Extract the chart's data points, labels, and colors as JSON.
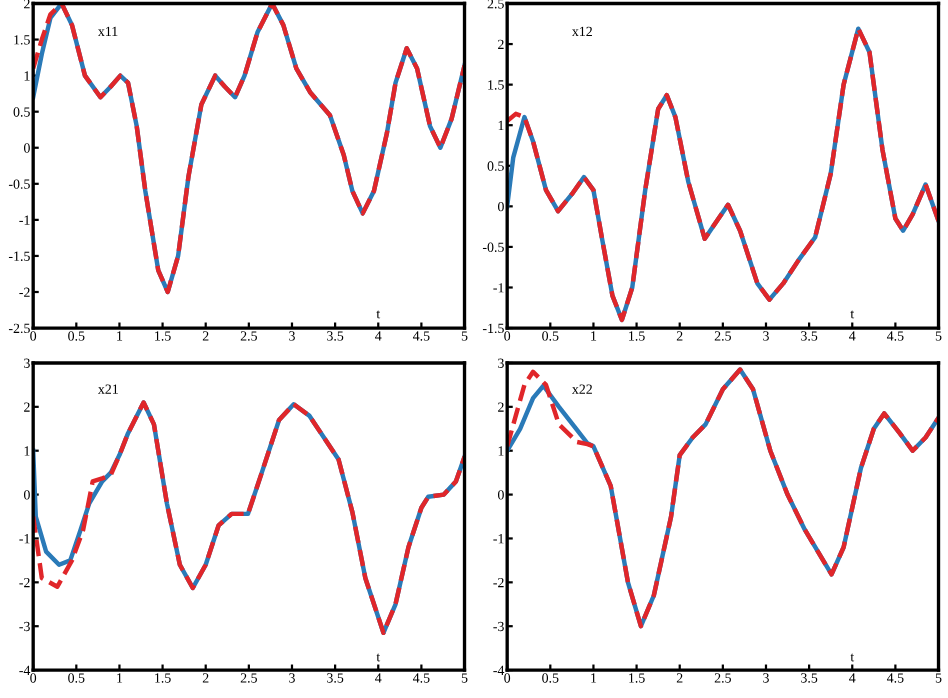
{
  "chart_data": [
    {
      "type": "line",
      "xlabel": "t",
      "annotations": [
        "x11"
      ],
      "xlim": [
        0,
        5
      ],
      "xticks": [
        0,
        0.5,
        1,
        1.5,
        2,
        2.5,
        3,
        3.5,
        4,
        4.5,
        5
      ],
      "ylim": [
        -2.5,
        2
      ],
      "yticks": [
        -2.5,
        -2,
        -1.5,
        -1,
        -0.5,
        0,
        0.5,
        1,
        1.5,
        2
      ],
      "grid": false,
      "series": [
        {
          "color": "#2a7ab8",
          "line_style": "solid",
          "x": [
            0,
            0.1,
            0.2,
            0.33,
            0.45,
            0.6,
            0.78,
            0.9,
            1.01,
            1.1,
            1.2,
            1.3,
            1.45,
            1.56,
            1.68,
            1.8,
            1.95,
            2.11,
            2.22,
            2.34,
            2.45,
            2.6,
            2.77,
            2.9,
            3.05,
            3.21,
            3.44,
            3.6,
            3.7,
            3.82,
            3.95,
            4.1,
            4.2,
            4.33,
            4.45,
            4.6,
            4.72,
            4.85,
            5
          ],
          "values": [
            0.7,
            1.3,
            1.8,
            2.0,
            1.7,
            1.0,
            0.7,
            0.85,
            1.0,
            0.9,
            0.3,
            -0.6,
            -1.7,
            -2.0,
            -1.5,
            -0.4,
            0.6,
            1.0,
            0.85,
            0.7,
            1.0,
            1.6,
            2.0,
            1.7,
            1.1,
            0.77,
            0.45,
            -0.1,
            -0.6,
            -0.91,
            -0.6,
            0.2,
            0.9,
            1.38,
            1.1,
            0.3,
            0.0,
            0.4,
            1.14
          ]
        },
        {
          "color": "#e0262a",
          "line_style": "dashed",
          "x": [
            0,
            0.1,
            0.2,
            0.33,
            0.45,
            0.6,
            0.78,
            0.9,
            1.01,
            1.1,
            1.2,
            1.3,
            1.45,
            1.56,
            1.68,
            1.8,
            1.95,
            2.11,
            2.22,
            2.34,
            2.45,
            2.6,
            2.77,
            2.9,
            3.05,
            3.21,
            3.44,
            3.6,
            3.7,
            3.82,
            3.95,
            4.1,
            4.2,
            4.33,
            4.45,
            4.6,
            4.72,
            4.85,
            5
          ],
          "values": [
            1.1,
            1.5,
            1.85,
            2.0,
            1.7,
            1.0,
            0.7,
            0.85,
            1.0,
            0.9,
            0.3,
            -0.6,
            -1.7,
            -2.0,
            -1.5,
            -0.4,
            0.6,
            1.0,
            0.85,
            0.7,
            1.0,
            1.6,
            2.0,
            1.7,
            1.1,
            0.77,
            0.45,
            -0.1,
            -0.6,
            -0.91,
            -0.6,
            0.2,
            0.9,
            1.38,
            1.1,
            0.3,
            0.0,
            0.4,
            1.14
          ]
        }
      ]
    },
    {
      "type": "line",
      "xlabel": "t",
      "annotations": [
        "x12"
      ],
      "xlim": [
        0,
        5
      ],
      "xticks": [
        0,
        0.5,
        1,
        1.5,
        2,
        2.5,
        3,
        3.5,
        4,
        4.5,
        5
      ],
      "ylim": [
        -1.5,
        2.5
      ],
      "yticks": [
        -1.5,
        -1,
        -0.5,
        0,
        0.5,
        1,
        1.5,
        2,
        2.5
      ],
      "grid": false,
      "series": [
        {
          "color": "#2a7ab8",
          "line_style": "solid",
          "x": [
            0,
            0.07,
            0.2,
            0.3,
            0.45,
            0.59,
            0.75,
            0.89,
            1.0,
            1.1,
            1.22,
            1.33,
            1.45,
            1.6,
            1.75,
            1.85,
            1.95,
            2.1,
            2.29,
            2.45,
            2.56,
            2.7,
            2.9,
            3.04,
            3.2,
            3.38,
            3.57,
            3.75,
            3.9,
            4.07,
            4.2,
            4.35,
            4.5,
            4.59,
            4.7,
            4.85,
            5
          ],
          "values": [
            0.0,
            0.6,
            1.1,
            0.8,
            0.2,
            -0.06,
            0.15,
            0.36,
            0.2,
            -0.4,
            -1.1,
            -1.4,
            -1.0,
            0.2,
            1.2,
            1.37,
            1.1,
            0.3,
            -0.4,
            -0.15,
            0.02,
            -0.3,
            -0.95,
            -1.15,
            -0.95,
            -0.66,
            -0.38,
            0.4,
            1.5,
            2.19,
            1.9,
            0.7,
            -0.15,
            -0.3,
            -0.1,
            0.27,
            -0.18
          ]
        },
        {
          "color": "#e0262a",
          "line_style": "dashed",
          "x": [
            0,
            0.1,
            0.2,
            0.3,
            0.45,
            0.59,
            0.75,
            0.89,
            1.0,
            1.1,
            1.22,
            1.33,
            1.45,
            1.6,
            1.75,
            1.85,
            1.95,
            2.1,
            2.29,
            2.45,
            2.56,
            2.7,
            2.9,
            3.04,
            3.2,
            3.38,
            3.57,
            3.75,
            3.9,
            4.07,
            4.2,
            4.35,
            4.5,
            4.59,
            4.7,
            4.85,
            5
          ],
          "values": [
            1.05,
            1.14,
            1.1,
            0.8,
            0.2,
            -0.06,
            0.15,
            0.36,
            0.2,
            -0.4,
            -1.1,
            -1.4,
            -1.0,
            0.2,
            1.2,
            1.37,
            1.1,
            0.3,
            -0.4,
            -0.15,
            0.02,
            -0.3,
            -0.95,
            -1.15,
            -0.95,
            -0.66,
            -0.38,
            0.4,
            1.5,
            2.19,
            1.9,
            0.7,
            -0.15,
            -0.3,
            -0.1,
            0.27,
            -0.18
          ]
        }
      ]
    },
    {
      "type": "line",
      "xlabel": "t",
      "annotations": [
        "x21"
      ],
      "xlim": [
        0,
        5
      ],
      "xticks": [
        0,
        0.5,
        1,
        1.5,
        2,
        2.5,
        3,
        3.5,
        4,
        4.5,
        5
      ],
      "ylim": [
        -4,
        3
      ],
      "yticks": [
        -4,
        -3,
        -2,
        -1,
        0,
        1,
        2,
        3
      ],
      "grid": false,
      "series": [
        {
          "color": "#2a7ab8",
          "line_style": "solid",
          "x": [
            0,
            0.03,
            0.15,
            0.3,
            0.43,
            0.55,
            0.65,
            0.8,
            0.9,
            1.0,
            1.1,
            1.28,
            1.4,
            1.55,
            1.7,
            1.85,
            2.0,
            2.15,
            2.3,
            2.49,
            2.65,
            2.85,
            3.02,
            3.2,
            3.54,
            3.7,
            3.85,
            4.06,
            4.2,
            4.35,
            4.5,
            4.58,
            4.76,
            4.9,
            5
          ],
          "values": [
            1.0,
            -0.5,
            -1.3,
            -1.6,
            -1.5,
            -0.8,
            -0.2,
            0.3,
            0.5,
            0.9,
            1.4,
            2.1,
            1.6,
            -0.2,
            -1.6,
            -2.13,
            -1.6,
            -0.7,
            -0.44,
            -0.44,
            0.5,
            1.7,
            2.06,
            1.8,
            0.8,
            -0.4,
            -1.9,
            -3.15,
            -2.5,
            -1.2,
            -0.3,
            -0.05,
            0.0,
            0.3,
            0.86
          ]
        },
        {
          "color": "#e0262a",
          "line_style": "dashed",
          "x": [
            0,
            0.1,
            0.28,
            0.45,
            0.58,
            0.69,
            0.8,
            0.9,
            1.0,
            1.1,
            1.28,
            1.4,
            1.55,
            1.7,
            1.85,
            2.0,
            2.15,
            2.3,
            2.49,
            2.65,
            2.85,
            3.02,
            3.2,
            3.54,
            3.7,
            3.85,
            4.06,
            4.2,
            4.35,
            4.5,
            4.58,
            4.76,
            4.9,
            5
          ],
          "values": [
            -0.5,
            -1.9,
            -2.1,
            -1.5,
            -0.8,
            0.3,
            0.37,
            0.45,
            0.9,
            1.4,
            2.1,
            1.6,
            -0.2,
            -1.6,
            -2.13,
            -1.6,
            -0.7,
            -0.44,
            -0.44,
            0.5,
            1.7,
            2.06,
            1.8,
            0.8,
            -0.4,
            -1.9,
            -3.15,
            -2.5,
            -1.2,
            -0.3,
            -0.05,
            0.0,
            0.3,
            0.86
          ]
        }
      ]
    },
    {
      "type": "line",
      "xlabel": "t",
      "annotations": [
        "x22"
      ],
      "xlim": [
        0,
        5
      ],
      "xticks": [
        0,
        0.5,
        1,
        1.5,
        2,
        2.5,
        3,
        3.5,
        4,
        4.5,
        5
      ],
      "ylim": [
        -4,
        3
      ],
      "yticks": [
        -4,
        -3,
        -2,
        -1,
        0,
        1,
        2,
        3
      ],
      "grid": false,
      "series": [
        {
          "color": "#2a7ab8",
          "line_style": "solid",
          "x": [
            0,
            0.15,
            0.3,
            0.42,
            0.6,
            0.8,
            0.93,
            1.0,
            1.2,
            1.4,
            1.55,
            1.7,
            1.9,
            2.0,
            2.15,
            2.3,
            2.5,
            2.7,
            2.85,
            3.05,
            3.25,
            3.45,
            3.76,
            3.9,
            4.1,
            4.25,
            4.37,
            4.55,
            4.7,
            4.85,
            5
          ],
          "values": [
            1.0,
            1.5,
            2.2,
            2.48,
            2.0,
            1.5,
            1.17,
            1.1,
            0.2,
            -2.0,
            -3.0,
            -2.3,
            -0.5,
            0.9,
            1.3,
            1.6,
            2.4,
            2.85,
            2.4,
            1.0,
            0.0,
            -0.8,
            -1.82,
            -1.2,
            0.6,
            1.5,
            1.85,
            1.4,
            1.0,
            1.3,
            1.75
          ]
        },
        {
          "color": "#e0262a",
          "line_style": "dashed",
          "x": [
            0,
            0.1,
            0.2,
            0.3,
            0.45,
            0.6,
            0.81,
            0.93,
            1.0,
            1.2,
            1.4,
            1.55,
            1.7,
            1.9,
            2.0,
            2.15,
            2.3,
            2.5,
            2.7,
            2.85,
            3.05,
            3.25,
            3.45,
            3.76,
            3.9,
            4.1,
            4.25,
            4.37,
            4.55,
            4.7,
            4.85,
            5
          ],
          "values": [
            1.1,
            1.8,
            2.5,
            2.8,
            2.5,
            1.6,
            1.2,
            1.15,
            1.1,
            0.2,
            -2.0,
            -3.0,
            -2.3,
            -0.5,
            0.9,
            1.3,
            1.6,
            2.4,
            2.85,
            2.4,
            1.0,
            0.0,
            -0.8,
            -1.82,
            -1.2,
            0.6,
            1.5,
            1.85,
            1.4,
            1.0,
            1.3,
            1.75
          ]
        }
      ]
    }
  ]
}
